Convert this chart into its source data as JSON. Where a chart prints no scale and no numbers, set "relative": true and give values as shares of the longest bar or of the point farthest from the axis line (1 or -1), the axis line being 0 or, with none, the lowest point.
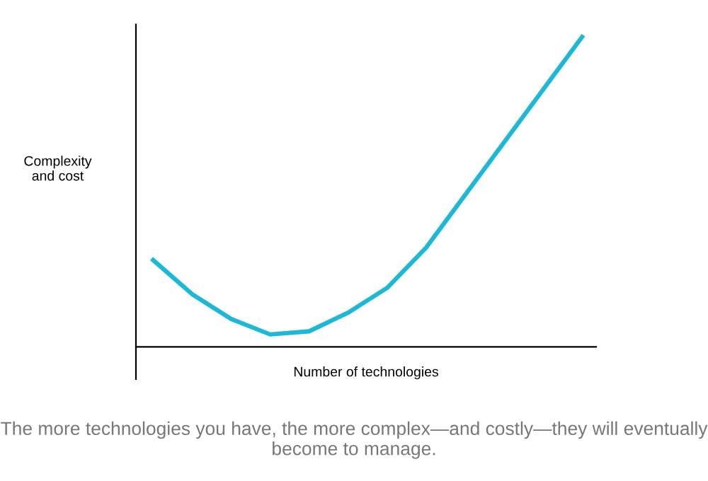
{
  "chart_data": {
    "type": "line",
    "relative": true,
    "xlabel": "Number of technologies",
    "ylabel": "Complexity\nand cost",
    "categories": [
      null,
      null,
      null,
      null,
      null,
      null,
      null,
      null,
      null,
      null,
      null,
      null
    ],
    "series": [
      {
        "color": "#1cb8d6",
        "values": [
          0.28,
          0.17,
          0.09,
          0.04,
          0.05,
          0.11,
          0.19,
          0.32,
          0.49,
          0.66,
          0.83,
          1.0
        ]
      }
    ],
    "marker": "none",
    "line_style": "solid",
    "grid": false,
    "legend": false,
    "tick_labels": false,
    "annotations": [
      "The more technologies you have, the more complex—and costly—they will eventually become to manage."
    ]
  }
}
